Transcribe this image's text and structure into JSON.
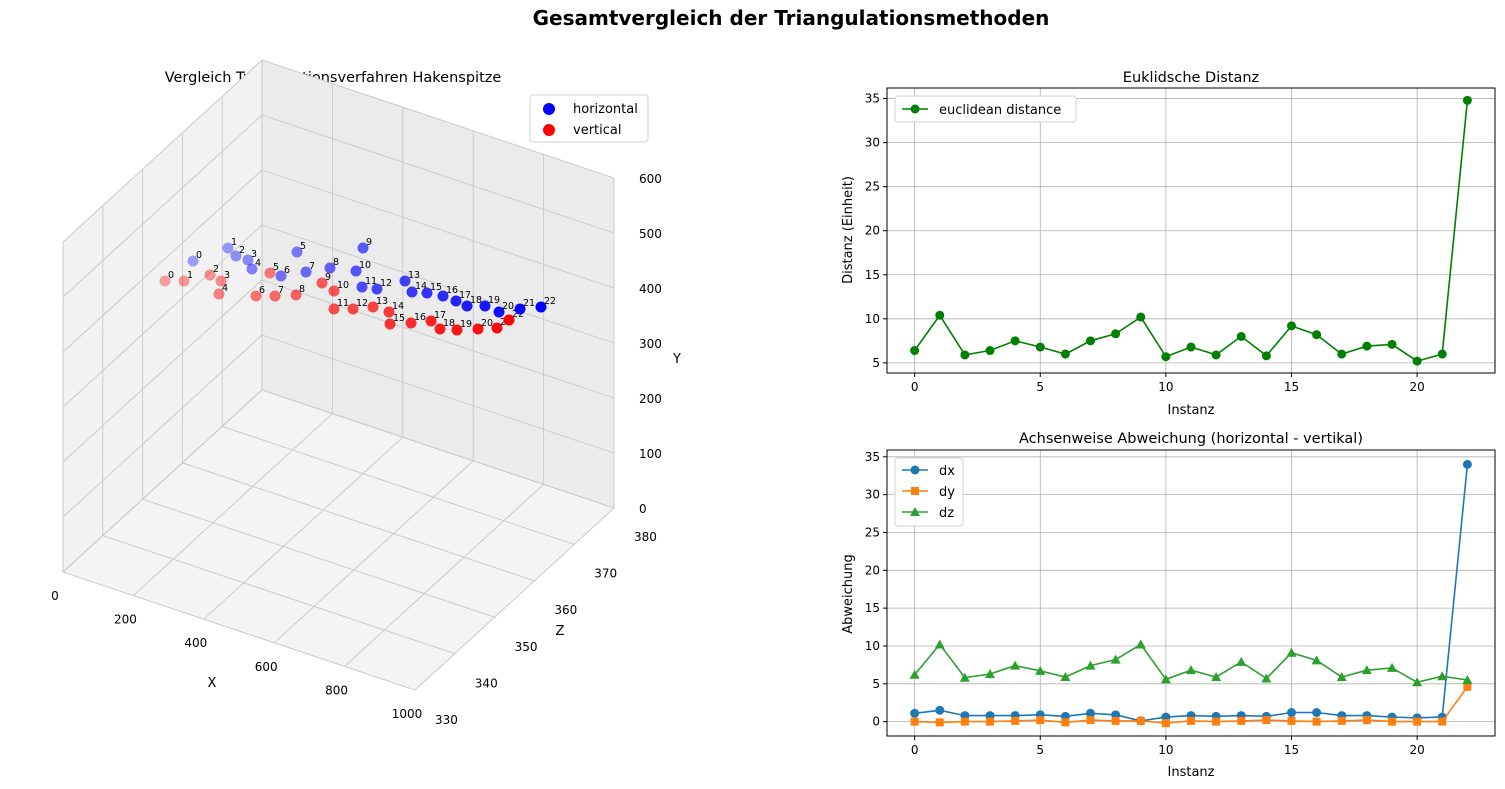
{
  "figure": {
    "suptitle": "Gesamtvergleich der Triangulationsmethoden"
  },
  "chart_data": [
    {
      "type": "scatter3d",
      "title": "Vergleich Triangulationsverfahren Hakenspitze",
      "xlabel": "X",
      "ylabel": "Y",
      "zlabel": "Z",
      "xlim": [
        0,
        1000
      ],
      "ylim": [
        0,
        600
      ],
      "zlim": [
        330,
        380
      ],
      "xticks": [
        0,
        200,
        400,
        600,
        800,
        1000
      ],
      "yticks": [
        0,
        100,
        200,
        300,
        400,
        500,
        600
      ],
      "zticks": [
        330,
        340,
        350,
        360,
        370,
        380
      ],
      "grid": true,
      "legend_position": "top-right",
      "series": [
        {
          "name": "horizontal",
          "color": "#0000ff",
          "labels": [
            "0",
            "1",
            "2",
            "3",
            "4",
            "5",
            "6",
            "7",
            "8",
            "9",
            "10",
            "11",
            "12",
            "13",
            "14",
            "15",
            "16",
            "17",
            "18",
            "19",
            "20",
            "21",
            "22"
          ],
          "screen_points": []
        },
        {
          "name": "vertical",
          "color": "#ff0000",
          "labels": [
            "0",
            "1",
            "2",
            "3",
            "4",
            "5",
            "6",
            "7",
            "8",
            "9",
            "10",
            "11",
            "12",
            "13",
            "14",
            "15",
            "16",
            "17",
            "18",
            "19",
            "20",
            "21",
            "22"
          ]
        }
      ]
    },
    {
      "type": "line",
      "title": "Euklidsche Distanz",
      "xlabel": "Instanz",
      "ylabel": "Distanz (Einheit)",
      "xlim": [
        -1.1,
        23.1
      ],
      "ylim": [
        3.85,
        36.2
      ],
      "xticks": [
        0,
        5,
        10,
        15,
        20
      ],
      "yticks": [
        5,
        10,
        15,
        20,
        25,
        30,
        35
      ],
      "grid": true,
      "legend_position": "top-left",
      "x": [
        0,
        1,
        2,
        3,
        4,
        5,
        6,
        7,
        8,
        9,
        10,
        11,
        12,
        13,
        14,
        15,
        16,
        17,
        18,
        19,
        20,
        21,
        22
      ],
      "series": [
        {
          "name": "euclidean distance",
          "color": "#008000",
          "marker": "circle",
          "values": [
            6.4,
            10.4,
            5.9,
            6.4,
            7.5,
            6.8,
            6.0,
            7.5,
            8.3,
            10.2,
            5.7,
            6.8,
            5.9,
            8.0,
            5.8,
            9.2,
            8.2,
            6.0,
            6.9,
            7.1,
            5.2,
            6.0,
            34.8
          ]
        }
      ]
    },
    {
      "type": "line",
      "title": "Achsenweise Abweichung (horizontal - vertikal)",
      "xlabel": "Instanz",
      "ylabel": "Abweichung",
      "xlim": [
        -1.1,
        23.1
      ],
      "ylim": [
        -1.9,
        35.9
      ],
      "xticks": [
        0,
        5,
        10,
        15,
        20
      ],
      "yticks": [
        0,
        5,
        10,
        15,
        20,
        25,
        30,
        35
      ],
      "grid": true,
      "legend_position": "top-left",
      "x": [
        0,
        1,
        2,
        3,
        4,
        5,
        6,
        7,
        8,
        9,
        10,
        11,
        12,
        13,
        14,
        15,
        16,
        17,
        18,
        19,
        20,
        21,
        22
      ],
      "series": [
        {
          "name": "dx",
          "color": "#1f77b4",
          "marker": "circle",
          "values": [
            1.1,
            1.5,
            0.8,
            0.8,
            0.8,
            0.9,
            0.7,
            1.1,
            0.9,
            0.1,
            0.6,
            0.8,
            0.7,
            0.8,
            0.7,
            1.2,
            1.2,
            0.8,
            0.8,
            0.6,
            0.5,
            0.6,
            34.0
          ]
        },
        {
          "name": "dy",
          "color": "#ff7f0e",
          "marker": "square",
          "values": [
            0.0,
            -0.1,
            0.0,
            0.0,
            0.1,
            0.2,
            -0.1,
            0.2,
            0.1,
            0.1,
            -0.2,
            0.1,
            0.0,
            0.1,
            0.2,
            0.1,
            0.0,
            0.1,
            0.2,
            0.0,
            0.0,
            0.0,
            4.6
          ]
        },
        {
          "name": "dz",
          "color": "#2ca02c",
          "marker": "triangle",
          "values": [
            6.2,
            10.2,
            5.8,
            6.3,
            7.4,
            6.7,
            5.9,
            7.4,
            8.2,
            10.2,
            5.6,
            6.8,
            5.9,
            7.9,
            5.7,
            9.1,
            8.1,
            5.9,
            6.8,
            7.1,
            5.2,
            6.0,
            5.5
          ]
        }
      ]
    }
  ]
}
